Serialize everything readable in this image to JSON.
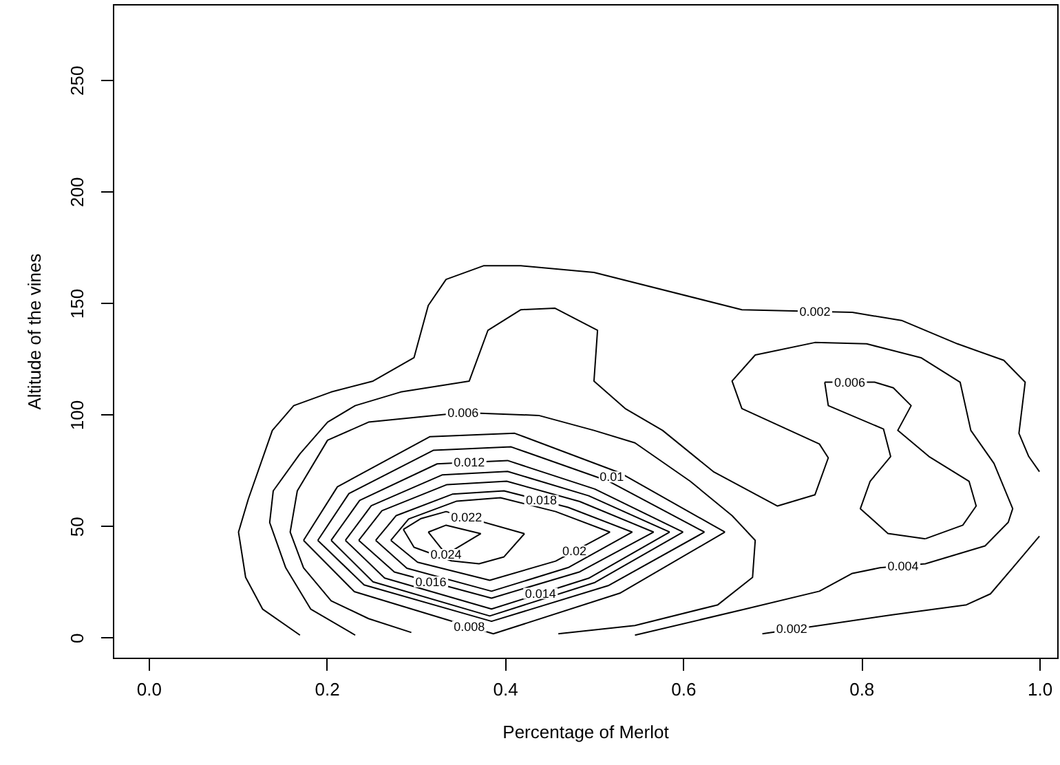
{
  "chart_data": {
    "type": "line",
    "xlabel": "Percentage of Merlot",
    "ylabel": "Altitude of the vines",
    "xlim": [
      -0.04,
      1.02
    ],
    "ylim": [
      -9,
      284
    ],
    "xticks": [
      {
        "value": 0,
        "label": "0.0"
      },
      {
        "value": 0.2,
        "label": "0.2"
      },
      {
        "value": 0.4,
        "label": "0.4"
      },
      {
        "value": 0.6,
        "label": "0.6"
      },
      {
        "value": 0.8,
        "label": "0.8"
      },
      {
        "value": 1,
        "label": "1.0"
      }
    ],
    "yticks": [
      0,
      50,
      100,
      150,
      200,
      250
    ],
    "grid": false,
    "marker": "none",
    "line_style": "solid",
    "series": [
      {
        "color": "#000000",
        "x": [
          0.17,
          0.128,
          0.109,
          0.101,
          0.112,
          0.139,
          0.163,
          0.205,
          0.252,
          0.298,
          0.314,
          0.334,
          0.376,
          0.418,
          0.5,
          0.666,
          0.79,
          0.846,
          0.908,
          0.96,
          0.984,
          0.977,
          0.988,
          1.0
        ],
        "values": [
          1.1,
          12.8,
          27.0,
          47.3,
          62.1,
          92.9,
          104.0,
          110.1,
          115.0,
          125.5,
          148.9,
          160.6,
          166.7,
          166.7,
          163.7,
          147.0,
          145.8,
          142.1,
          131.7,
          124.3,
          114.5,
          91.6,
          81.2,
          74.4
        ]
      },
      {
        "color": "#000000",
        "x": [
          0.689,
          0.753,
          0.836,
          0.918,
          0.945,
          0.97,
          1.0
        ],
        "values": [
          1.7,
          5.4,
          10.3,
          14.7,
          19.6,
          31.3,
          45.5
        ]
      },
      {
        "color": "#000000",
        "x": [
          0.232,
          0.182,
          0.154,
          0.136,
          0.14,
          0.17,
          0.201,
          0.232,
          0.283,
          0.36,
          0.381,
          0.418,
          0.456,
          0.504,
          0.5,
          0.535,
          0.577,
          0.634,
          0.706,
          0.748,
          0.763,
          0.753,
          0.666,
          0.655,
          0.681,
          0.748,
          0.806,
          0.867,
          0.911,
          0.923,
          0.949,
          0.97,
          0.965,
          0.939,
          0.872,
          0.821,
          0.79,
          0.753,
          0.67,
          0.546
        ],
        "values": [
          1.1,
          12.8,
          31.3,
          51.6,
          65.8,
          82.4,
          96.6,
          104.0,
          110.1,
          115.0,
          137.8,
          147.0,
          147.7,
          137.8,
          115.0,
          102.7,
          92.9,
          74.4,
          59.0,
          64.0,
          80.6,
          86.8,
          102.7,
          115.0,
          126.7,
          132.3,
          131.7,
          125.5,
          114.5,
          92.9,
          78.1,
          57.8,
          51.7,
          41.1,
          33.1,
          31.3,
          28.8,
          20.8,
          12.8,
          1.1
        ]
      },
      {
        "color": "#000000",
        "x": [
          0.295,
          0.247,
          0.205,
          0.174,
          0.159,
          0.167,
          0.201,
          0.247,
          0.353,
          0.438,
          0.5,
          0.546,
          0.608,
          0.655,
          0.681,
          0.678,
          0.639,
          0.546,
          0.46
        ],
        "values": [
          2.3,
          8.5,
          16.5,
          31.3,
          47.3,
          65.8,
          88.5,
          96.6,
          100.9,
          99.6,
          92.9,
          87.3,
          70.1,
          54.7,
          43.6,
          27.0,
          14.7,
          5.4,
          1.7
        ]
      },
      {
        "color": "#000000",
        "x": [
          0.759,
          0.763,
          0.825,
          0.833,
          0.81,
          0.799,
          0.83,
          0.872
        ],
        "values": [
          114.5,
          104.0,
          93.5,
          81.2,
          70.1,
          57.8,
          46.7,
          44.3
        ]
      },
      {
        "color": "#000000",
        "x": [
          0.872,
          0.914,
          0.929,
          0.921,
          0.876,
          0.841,
          0.856,
          0.836,
          0.815,
          0.759
        ],
        "values": [
          44.3,
          50.4,
          59.0,
          70.1,
          81.2,
          92.9,
          104.0,
          112.0,
          114.5,
          114.5
        ]
      },
      {
        "color": "#000000",
        "x": [
          0.174,
          0.212,
          0.316,
          0.411,
          0.529,
          0.647
        ],
        "values": [
          43.6,
          67.6,
          90.1,
          91.6,
          73.9,
          47.3
        ]
      },
      {
        "color": "#000000",
        "x": [
          0.647,
          0.529,
          0.387,
          0.231,
          0.174
        ],
        "values": [
          47.3,
          19.9,
          1.7,
          20.6,
          43.6
        ]
      },
      {
        "color": "#000000",
        "x": [
          0.19,
          0.225,
          0.32,
          0.407,
          0.516,
          0.624
        ],
        "values": [
          43.6,
          64.6,
          84.0,
          85.5,
          70.2,
          47.3
        ]
      },
      {
        "color": "#000000",
        "x": [
          0.624,
          0.516,
          0.385,
          0.242,
          0.19
        ],
        "values": [
          47.3,
          23.3,
          7.3,
          23.6,
          43.6
        ]
      },
      {
        "color": "#000000",
        "x": [
          0.205,
          0.237,
          0.324,
          0.403,
          0.501,
          0.6
        ],
        "values": [
          43.6,
          61.5,
          77.9,
          79.4,
          66.6,
          47.3
        ]
      },
      {
        "color": "#000000",
        "x": [
          0.6,
          0.501,
          0.383,
          0.252,
          0.205
        ],
        "values": [
          47.3,
          24.7,
          9.7,
          25.0,
          43.6
        ]
      },
      {
        "color": "#000000",
        "x": [
          0.221,
          0.25,
          0.33,
          0.403,
          0.494,
          0.585
        ],
        "values": [
          43.6,
          59.1,
          73.0,
          74.5,
          63.6,
          47.3
        ]
      },
      {
        "color": "#000000",
        "x": [
          0.585,
          0.494,
          0.385,
          0.265,
          0.221
        ],
        "values": [
          47.3,
          26.6,
          12.8,
          26.7,
          43.6
        ]
      },
      {
        "color": "#000000",
        "x": [
          0.236,
          0.262,
          0.335,
          0.402,
          0.484,
          0.567
        ],
        "values": [
          43.6,
          56.9,
          68.6,
          70.1,
          61.0,
          47.3
        ]
      },
      {
        "color": "#000000",
        "x": [
          0.567,
          0.484,
          0.385,
          0.276,
          0.236
        ],
        "values": [
          47.3,
          29.5,
          17.7,
          29.4,
          43.6
        ]
      },
      {
        "color": "#000000",
        "x": [
          0.255,
          0.278,
          0.341,
          0.399,
          0.471,
          0.543
        ],
        "values": [
          43.6,
          54.7,
          64.3,
          65.8,
          58.4,
          47.3
        ]
      },
      {
        "color": "#000000",
        "x": [
          0.543,
          0.471,
          0.385,
          0.29,
          0.255
        ],
        "values": [
          47.3,
          31.4,
          20.8,
          31.1,
          43.6
        ]
      },
      {
        "color": "#000000",
        "x": [
          0.272,
          0.292,
          0.346,
          0.395,
          0.457,
          0.518
        ],
        "values": [
          43.6,
          53.2,
          61.2,
          62.7,
          56.5,
          47.3
        ]
      },
      {
        "color": "#000000",
        "x": [
          0.518,
          0.457,
          0.383,
          0.302,
          0.272
        ],
        "values": [
          47.3,
          34.3,
          25.7,
          33.8,
          43.6
        ]
      },
      {
        "color": "#000000",
        "x": [
          0.286,
          0.306,
          0.334,
          0.422
        ],
        "values": [
          48.5,
          53.4,
          56.5,
          46.6
        ]
      },
      {
        "color": "#000000",
        "x": [
          0.422,
          0.399,
          0.371,
          0.34,
          0.298,
          0.286
        ],
        "values": [
          46.6,
          36.2,
          33.1,
          34.4,
          40.5,
          48.5
        ]
      },
      {
        "color": "#000000",
        "x": [
          0.314,
          0.334,
          0.373
        ],
        "values": [
          47.3,
          50.4,
          46.6
        ]
      },
      {
        "color": "#000000",
        "x": [
          0.373,
          0.334,
          0.314
        ],
        "values": [
          46.6,
          37.3,
          47.3
        ]
      }
    ],
    "annotations": [
      {
        "text": "0.002",
        "x": 0.748,
        "y": 146.2
      },
      {
        "text": "0.002",
        "x": 0.722,
        "y": 3.8
      },
      {
        "text": "0.004",
        "x": 0.847,
        "y": 32
      },
      {
        "text": "0.006",
        "x": 0.353,
        "y": 100.9
      },
      {
        "text": "0.006",
        "x": 0.787,
        "y": 114.5
      },
      {
        "text": "0.008",
        "x": 0.36,
        "y": 5.0
      },
      {
        "text": "0.01",
        "x": 0.52,
        "y": 72
      },
      {
        "text": "0.012",
        "x": 0.36,
        "y": 78.6
      },
      {
        "text": "0.014",
        "x": 0.44,
        "y": 19.8
      },
      {
        "text": "0.016",
        "x": 0.317,
        "y": 25.0
      },
      {
        "text": "0.018",
        "x": 0.441,
        "y": 61.5
      },
      {
        "text": "0.02",
        "x": 0.478,
        "y": 38.8
      },
      {
        "text": "0.022",
        "x": 0.357,
        "y": 53.9
      },
      {
        "text": "0.024",
        "x": 0.334,
        "y": 37.3
      }
    ]
  }
}
